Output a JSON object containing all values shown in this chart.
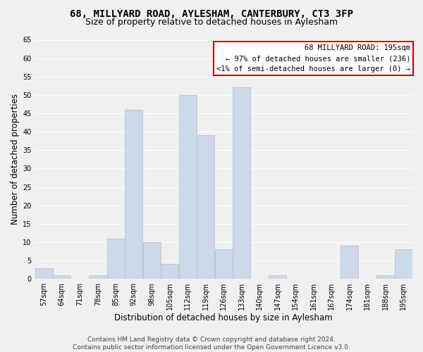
{
  "title": "68, MILLYARD ROAD, AYLESHAM, CANTERBURY, CT3 3FP",
  "subtitle": "Size of property relative to detached houses in Aylesham",
  "xlabel": "Distribution of detached houses by size in Aylesham",
  "ylabel": "Number of detached properties",
  "bar_color": "#ccd9e8",
  "bar_edge_color": "#aabdcf",
  "bins": [
    "57sqm",
    "64sqm",
    "71sqm",
    "78sqm",
    "85sqm",
    "92sqm",
    "98sqm",
    "105sqm",
    "112sqm",
    "119sqm",
    "126sqm",
    "133sqm",
    "140sqm",
    "147sqm",
    "154sqm",
    "161sqm",
    "167sqm",
    "174sqm",
    "181sqm",
    "188sqm",
    "195sqm"
  ],
  "values": [
    3,
    1,
    0,
    1,
    11,
    46,
    10,
    4,
    50,
    39,
    8,
    52,
    0,
    1,
    0,
    0,
    0,
    9,
    0,
    1,
    8
  ],
  "ylim": [
    0,
    65
  ],
  "yticks": [
    0,
    5,
    10,
    15,
    20,
    25,
    30,
    35,
    40,
    45,
    50,
    55,
    60,
    65
  ],
  "annotation_title": "68 MILLYARD ROAD: 195sqm",
  "annotation_line1": "← 97% of detached houses are smaller (236)",
  "annotation_line2": "<1% of semi-detached houses are larger (0) →",
  "annotation_box_facecolor": "#ffffff",
  "annotation_box_edgecolor": "#cc0000",
  "footer_line1": "Contains HM Land Registry data © Crown copyright and database right 2024.",
  "footer_line2": "Contains public sector information licensed under the Open Government Licence v3.0.",
  "background_color": "#f0f0f0",
  "plot_bg_color": "#f0f0f0",
  "grid_color": "#ffffff",
  "title_fontsize": 10,
  "subtitle_fontsize": 9,
  "axis_label_fontsize": 8.5,
  "tick_fontsize": 7,
  "annotation_fontsize": 7.5,
  "footer_fontsize": 6.5
}
